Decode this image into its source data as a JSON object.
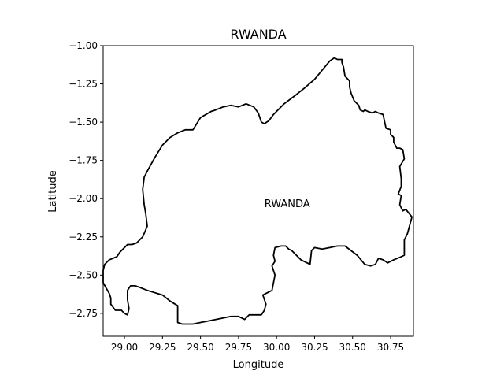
{
  "title": "RWANDA",
  "chart_data": {
    "type": "map",
    "title": "RWANDA",
    "xlabel": "Longitude",
    "ylabel": "Latitude",
    "xlim": [
      28.86,
      30.9
    ],
    "ylim": [
      -2.9,
      -1.0
    ],
    "x_ticks": [
      29.0,
      29.25,
      29.5,
      29.75,
      30.0,
      30.25,
      30.5,
      30.75
    ],
    "x_tick_labels": [
      "29.00",
      "29.25",
      "29.50",
      "29.75",
      "30.00",
      "30.25",
      "30.50",
      "30.75"
    ],
    "y_ticks": [
      -1.0,
      -1.25,
      -1.5,
      -1.75,
      -2.0,
      -2.25,
      -2.5,
      -2.75
    ],
    "y_tick_labels": [
      "−1.00",
      "−1.25",
      "−1.50",
      "−1.75",
      "−2.00",
      "−2.25",
      "−2.50",
      "−2.75"
    ],
    "grid": false,
    "place_labels": [
      {
        "text": "RWANDA",
        "lon": 30.07,
        "lat": -2.03
      }
    ],
    "boundary": [
      [
        29.05,
        -2.3
      ],
      [
        29.02,
        -2.3
      ],
      [
        28.97,
        -2.35
      ],
      [
        28.95,
        -2.38
      ],
      [
        28.9,
        -2.4
      ],
      [
        28.87,
        -2.43
      ],
      [
        28.86,
        -2.47
      ],
      [
        28.86,
        -2.55
      ],
      [
        28.9,
        -2.62
      ],
      [
        28.91,
        -2.65
      ],
      [
        28.91,
        -2.69
      ],
      [
        28.94,
        -2.73
      ],
      [
        28.98,
        -2.73
      ],
      [
        29.0,
        -2.75
      ],
      [
        29.02,
        -2.76
      ],
      [
        29.03,
        -2.72
      ],
      [
        29.02,
        -2.66
      ],
      [
        29.02,
        -2.6
      ],
      [
        29.04,
        -2.57
      ],
      [
        29.07,
        -2.57
      ],
      [
        29.1,
        -2.58
      ],
      [
        29.15,
        -2.6
      ],
      [
        29.25,
        -2.63
      ],
      [
        29.3,
        -2.67
      ],
      [
        29.35,
        -2.7
      ],
      [
        29.35,
        -2.77
      ],
      [
        29.35,
        -2.81
      ],
      [
        29.38,
        -2.82
      ],
      [
        29.45,
        -2.82
      ],
      [
        29.5,
        -2.81
      ],
      [
        29.55,
        -2.8
      ],
      [
        29.65,
        -2.78
      ],
      [
        29.7,
        -2.77
      ],
      [
        29.75,
        -2.77
      ],
      [
        29.79,
        -2.79
      ],
      [
        29.8,
        -2.78
      ],
      [
        29.82,
        -2.76
      ],
      [
        29.9,
        -2.76
      ],
      [
        29.92,
        -2.73
      ],
      [
        29.93,
        -2.69
      ],
      [
        29.91,
        -2.63
      ],
      [
        29.95,
        -2.61
      ],
      [
        29.97,
        -2.6
      ],
      [
        29.98,
        -2.55
      ],
      [
        29.99,
        -2.5
      ],
      [
        29.97,
        -2.44
      ],
      [
        29.99,
        -2.41
      ],
      [
        29.98,
        -2.37
      ],
      [
        29.99,
        -2.32
      ],
      [
        30.03,
        -2.31
      ],
      [
        30.06,
        -2.31
      ],
      [
        30.08,
        -2.33
      ],
      [
        30.1,
        -2.34
      ],
      [
        30.16,
        -2.4
      ],
      [
        30.22,
        -2.43
      ],
      [
        30.23,
        -2.34
      ],
      [
        30.25,
        -2.32
      ],
      [
        30.3,
        -2.33
      ],
      [
        30.35,
        -2.32
      ],
      [
        30.4,
        -2.31
      ],
      [
        30.45,
        -2.31
      ],
      [
        30.53,
        -2.37
      ],
      [
        30.58,
        -2.43
      ],
      [
        30.62,
        -2.44
      ],
      [
        30.65,
        -2.43
      ],
      [
        30.67,
        -2.39
      ],
      [
        30.7,
        -2.4
      ],
      [
        30.73,
        -2.42
      ],
      [
        30.77,
        -2.4
      ],
      [
        30.82,
        -2.38
      ],
      [
        30.84,
        -2.37
      ],
      [
        30.84,
        -2.27
      ],
      [
        30.86,
        -2.23
      ],
      [
        30.89,
        -2.12
      ],
      [
        30.85,
        -2.07
      ],
      [
        30.83,
        -2.08
      ],
      [
        30.82,
        -2.06
      ],
      [
        30.81,
        -2.04
      ],
      [
        30.82,
        -1.98
      ],
      [
        30.8,
        -1.97
      ],
      [
        30.82,
        -1.92
      ],
      [
        30.82,
        -1.87
      ],
      [
        30.81,
        -1.79
      ],
      [
        30.84,
        -1.74
      ],
      [
        30.83,
        -1.68
      ],
      [
        30.81,
        -1.67
      ],
      [
        30.79,
        -1.67
      ],
      [
        30.77,
        -1.63
      ],
      [
        30.77,
        -1.6
      ],
      [
        30.75,
        -1.58
      ],
      [
        30.75,
        -1.55
      ],
      [
        30.72,
        -1.54
      ],
      [
        30.7,
        -1.45
      ],
      [
        30.67,
        -1.44
      ],
      [
        30.65,
        -1.43
      ],
      [
        30.63,
        -1.44
      ],
      [
        30.6,
        -1.43
      ],
      [
        30.58,
        -1.42
      ],
      [
        30.57,
        -1.43
      ],
      [
        30.55,
        -1.42
      ],
      [
        30.54,
        -1.39
      ],
      [
        30.51,
        -1.36
      ],
      [
        30.49,
        -1.31
      ],
      [
        30.48,
        -1.27
      ],
      [
        30.48,
        -1.23
      ],
      [
        30.45,
        -1.2
      ],
      [
        30.44,
        -1.14
      ],
      [
        30.43,
        -1.11
      ],
      [
        30.43,
        -1.09
      ],
      [
        30.4,
        -1.09
      ],
      [
        30.38,
        -1.08
      ],
      [
        30.35,
        -1.1
      ],
      [
        30.3,
        -1.16
      ],
      [
        30.25,
        -1.22
      ],
      [
        30.18,
        -1.28
      ],
      [
        30.13,
        -1.32
      ],
      [
        30.05,
        -1.38
      ],
      [
        29.98,
        -1.45
      ],
      [
        29.95,
        -1.49
      ],
      [
        29.92,
        -1.51
      ],
      [
        29.9,
        -1.5
      ],
      [
        29.88,
        -1.44
      ],
      [
        29.85,
        -1.4
      ],
      [
        29.8,
        -1.38
      ],
      [
        29.75,
        -1.4
      ],
      [
        29.7,
        -1.39
      ],
      [
        29.65,
        -1.4
      ],
      [
        29.6,
        -1.42
      ],
      [
        29.57,
        -1.43
      ],
      [
        29.5,
        -1.47
      ],
      [
        29.45,
        -1.55
      ],
      [
        29.4,
        -1.55
      ],
      [
        29.35,
        -1.57
      ],
      [
        29.3,
        -1.6
      ],
      [
        29.25,
        -1.65
      ],
      [
        29.2,
        -1.73
      ],
      [
        29.15,
        -1.82
      ],
      [
        29.13,
        -1.86
      ],
      [
        29.12,
        -1.94
      ],
      [
        29.13,
        -2.04
      ],
      [
        29.14,
        -2.1
      ],
      [
        29.15,
        -2.18
      ],
      [
        29.12,
        -2.25
      ],
      [
        29.08,
        -2.29
      ],
      [
        29.05,
        -2.3
      ]
    ]
  }
}
